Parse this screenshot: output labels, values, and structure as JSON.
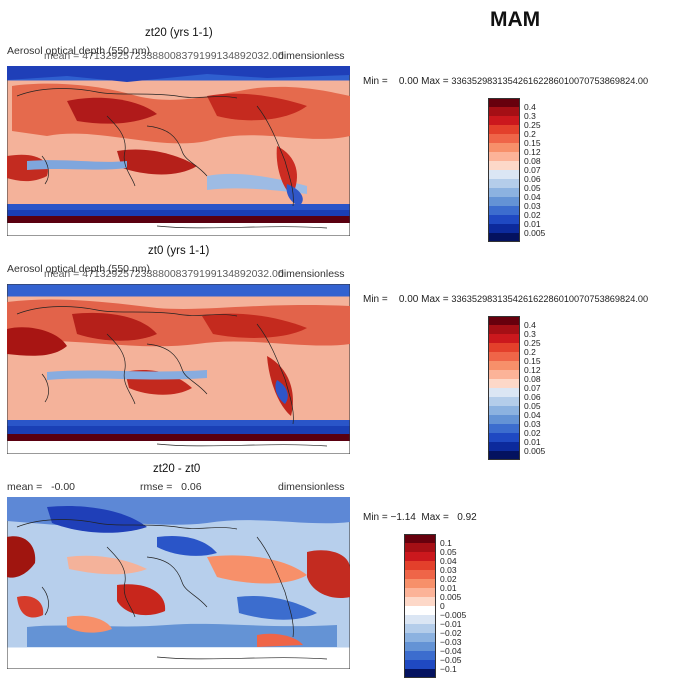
{
  "season": "MAM",
  "panels": [
    {
      "title": "zt20 (yrs 1-1)",
      "variable": "Aerosol optical depth (550 nm)",
      "mean_line": "mean =  47132925723388008379199134892032.00",
      "units": "dimensionless",
      "min_label": "Min =",
      "min_value": "0.00",
      "max_label": "Max =",
      "max_value": "3363529831354261622860100707538698​24.00",
      "colorbar": {
        "labels": [
          "0.4",
          "0.3",
          "0.25",
          "0.2",
          "0.15",
          "0.12",
          "0.08",
          "0.07",
          "0.06",
          "0.05",
          "0.04",
          "0.03",
          "0.02",
          "0.01",
          "0.005"
        ],
        "colors": [
          "#67000d",
          "#a50f15",
          "#cb181d",
          "#e3402b",
          "#ef6548",
          "#f7906a",
          "#fcb398",
          "#fdd8c8",
          "#dbe6f4",
          "#b4cdea",
          "#8cb2e0",
          "#6493d5",
          "#3c6dce",
          "#1f49c2",
          "#0c2a9c",
          "#04125f"
        ]
      }
    },
    {
      "title": "zt0 (yrs 1-1)",
      "variable": "Aerosol optical depth (550 nm)",
      "mean_line": "mean =  47132925723388008379199134892032.00",
      "units": "dimensionless",
      "min_label": "Min =",
      "min_value": "0.00",
      "max_label": "Max =",
      "max_value": "336352983135426162286010070753869824.00",
      "colorbar": {
        "labels": [
          "0.4",
          "0.3",
          "0.25",
          "0.2",
          "0.15",
          "0.12",
          "0.08",
          "0.07",
          "0.06",
          "0.05",
          "0.04",
          "0.03",
          "0.02",
          "0.01",
          "0.005"
        ],
        "colors": [
          "#67000d",
          "#a50f15",
          "#cb181d",
          "#e3402b",
          "#ef6548",
          "#f7906a",
          "#fcb398",
          "#fdd8c8",
          "#dbe6f4",
          "#b4cdea",
          "#8cb2e0",
          "#6493d5",
          "#3c6dce",
          "#1f49c2",
          "#0c2a9c",
          "#04125f"
        ]
      }
    },
    {
      "title": "zt20 - zt0",
      "mean_label": "mean =",
      "mean_value": "-0.00",
      "rmse_label": "rmse =",
      "rmse_value": "0.06",
      "units": "dimensionless",
      "min_label": "Min =",
      "min_value": "−1.14",
      "max_label": "Max =",
      "max_value": "0.92",
      "colorbar": {
        "labels": [
          "0.1",
          "0.05",
          "0.04",
          "0.03",
          "0.02",
          "0.01",
          "0.005",
          "0",
          "−0.005",
          "−0.01",
          "−0.02",
          "−0.03",
          "−0.04",
          "−0.05",
          "−0.1"
        ],
        "colors": [
          "#67000d",
          "#a50f15",
          "#cb181d",
          "#e3402b",
          "#ef6548",
          "#f7906a",
          "#fcb398",
          "#fdd8c8",
          "#ffffff",
          "#dbe6f4",
          "#b4cdea",
          "#8cb2e0",
          "#6493d5",
          "#3c6dce",
          "#1f49c2",
          "#04125f"
        ]
      }
    }
  ]
}
